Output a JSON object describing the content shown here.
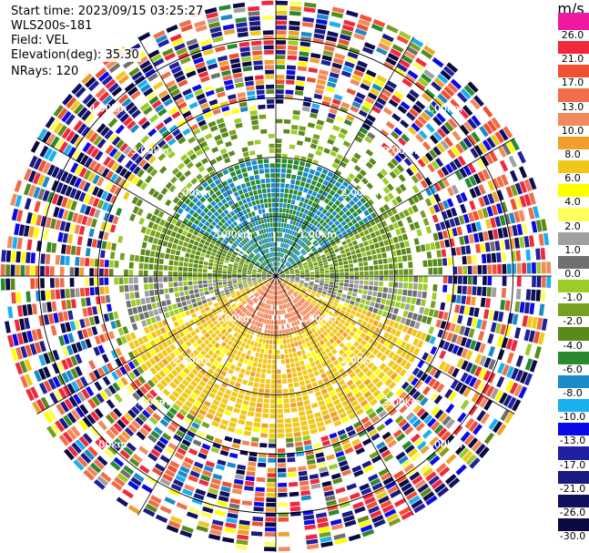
{
  "header": {
    "start_time": "Start time: 2023/09/15 03:25:27",
    "instrument": "WLS200s-181",
    "field": "Field: VEL",
    "elevation": "Elevation(deg): 35.30",
    "nrays": "NRays: 120"
  },
  "legend": {
    "unit": "m/s",
    "entries": [
      {
        "label": "26.0",
        "color": "#f01aa0"
      },
      {
        "label": "21.0",
        "color": "#f0283c"
      },
      {
        "label": "17.0",
        "color": "#f05032"
      },
      {
        "label": "13.0",
        "color": "#f06e4a"
      },
      {
        "label": "10.0",
        "color": "#f38a5c"
      },
      {
        "label": "8.0",
        "color": "#f0a02a"
      },
      {
        "label": "6.0",
        "color": "#f0c81a"
      },
      {
        "label": "4.0",
        "color": "#ffff00"
      },
      {
        "label": "2.0",
        "color": "#ffff60"
      },
      {
        "label": "1.0",
        "color": "#a0a0a0"
      },
      {
        "label": "0.0",
        "color": "#707070"
      },
      {
        "label": "-1.0",
        "color": "#9ccc2a"
      },
      {
        "label": "-2.0",
        "color": "#78a020"
      },
      {
        "label": "-4.0",
        "color": "#5a8a1a"
      },
      {
        "label": "-6.0",
        "color": "#2a8a30"
      },
      {
        "label": "-8.0",
        "color": "#1a8ac8"
      },
      {
        "label": "-10.0",
        "color": "#1ab0f0"
      },
      {
        "label": "-13.0",
        "color": "#0a0ae8"
      },
      {
        "label": "-17.0",
        "color": "#2020a0"
      },
      {
        "label": "-21.0",
        "color": "#1a1a80"
      },
      {
        "label": "-26.0",
        "color": "#101060"
      },
      {
        "label": "-30.0",
        "color": "#0a0a40"
      }
    ]
  },
  "chart_data": {
    "type": "heatmap",
    "projection": "polar PPI",
    "field": "VEL",
    "units": "m/s",
    "vmin": -30.0,
    "vmax": 26.0,
    "range_rings_km": [
      1.0,
      2.0,
      3.0,
      4.0
    ],
    "ring_labels": [
      "1.00km",
      "2.00km",
      "3.00km",
      "4.00km"
    ],
    "max_range_km": 4.65,
    "n_rays": 120,
    "azimuth_step_deg": 3,
    "n_gates": 56,
    "sectors": [
      {
        "from_az_deg": 300,
        "to_az_deg": 60,
        "max_range_km": 2.0,
        "velocity_ms": -6.0
      },
      {
        "from_az_deg": 270,
        "to_az_deg": 300,
        "max_range_km": 2.3,
        "velocity_ms": -2.0
      },
      {
        "from_az_deg": 60,
        "to_az_deg": 90,
        "max_range_km": 2.3,
        "velocity_ms": -2.0
      },
      {
        "from_az_deg": 90,
        "to_az_deg": 110,
        "max_range_km": 2.6,
        "velocity_ms": 0.5
      },
      {
        "from_az_deg": 250,
        "to_az_deg": 270,
        "max_range_km": 2.6,
        "velocity_ms": 0.5
      },
      {
        "from_az_deg": 110,
        "to_az_deg": 250,
        "max_range_km": 2.7,
        "velocity_ms": 7.0
      },
      {
        "from_az_deg": 130,
        "to_az_deg": 230,
        "max_range_km": 1.0,
        "velocity_ms": 12.0
      }
    ],
    "noise_beyond_km": 3.0,
    "grid": true
  }
}
